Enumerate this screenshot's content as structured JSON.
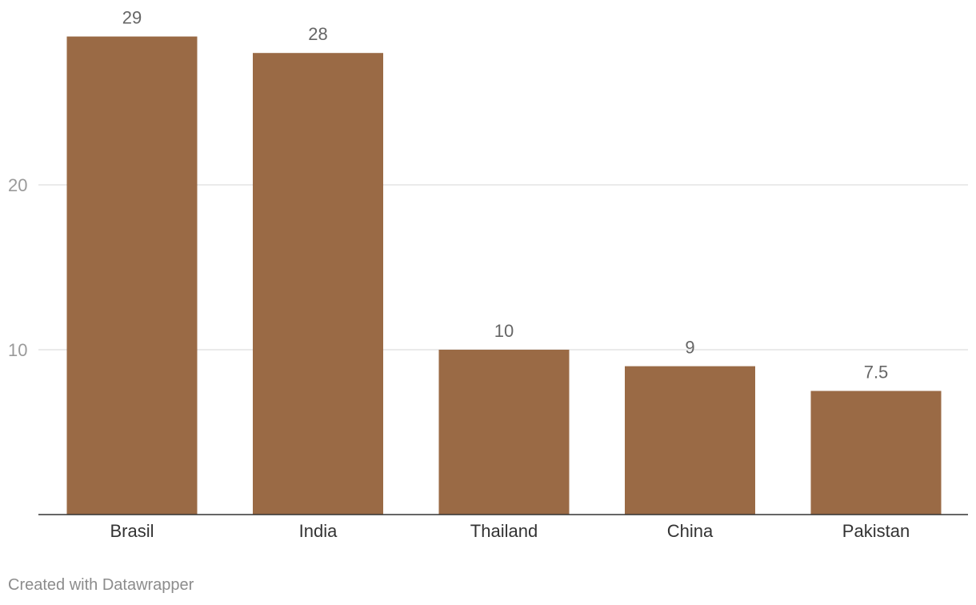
{
  "chart_data": {
    "type": "bar",
    "categories": [
      "Brasil",
      "India",
      "Thailand",
      "China",
      "Pakistan"
    ],
    "values": [
      29,
      28,
      10,
      9,
      7.5
    ],
    "value_labels": [
      "29",
      "28",
      "10",
      "9",
      "7.5"
    ],
    "yticks": [
      10,
      20
    ],
    "ylim": [
      0,
      30
    ],
    "grid": true,
    "bar_color": "#9a6a45",
    "title": "",
    "xlabel": "",
    "ylabel": ""
  },
  "footer": {
    "credit": "Created with Datawrapper"
  }
}
